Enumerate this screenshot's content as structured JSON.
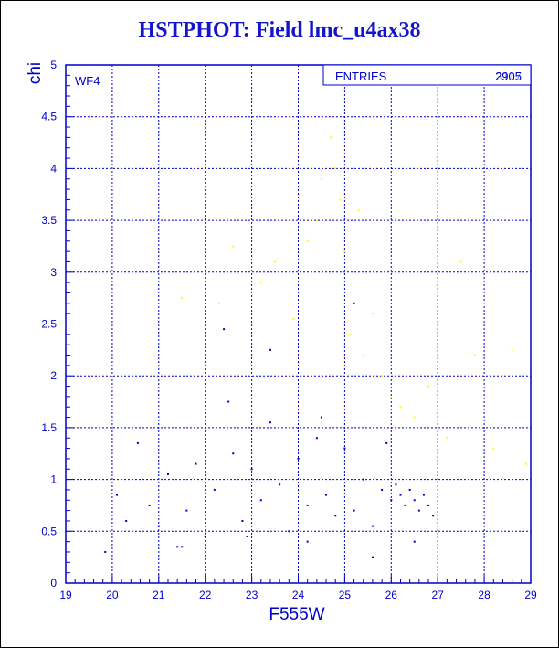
{
  "chart_data": {
    "type": "scatter",
    "title": "HSTPHOT: Field lmc_u4ax38",
    "xlabel": "F555W",
    "ylabel": "chi",
    "xlim": [
      19,
      29
    ],
    "ylim": [
      0,
      5
    ],
    "x_ticks": [
      "19",
      "20",
      "21",
      "22",
      "23",
      "24",
      "25",
      "26",
      "27",
      "28",
      "29"
    ],
    "y_ticks": [
      "0",
      "0.5",
      "1",
      "1.5",
      "2",
      "2.5",
      "3",
      "3.5",
      "4",
      "4.5",
      "5"
    ],
    "grid": true,
    "panel_label": "WF4",
    "stats_label": "ENTRIES",
    "stats_value": "2905",
    "stats_value_overprint": "3117",
    "colors": {
      "frame": "#0000cc",
      "blue_points": "#0000cc",
      "yellow_points": "#ffff00",
      "title": "#1414c8"
    },
    "series": [
      {
        "color": "#0000cc",
        "x": [
          19.85,
          20.1,
          20.3,
          20.55,
          20.8,
          21.0,
          21.2,
          21.4,
          21.6,
          21.8,
          22.0,
          22.2,
          22.4,
          22.6,
          22.8,
          23.0,
          23.2,
          23.4,
          23.6,
          23.8,
          24.0,
          24.2,
          24.4,
          24.6,
          24.8,
          25.0,
          25.2,
          25.4,
          25.6,
          25.8,
          26.0,
          26.1,
          26.2,
          26.3,
          26.4,
          26.5,
          26.6,
          26.7,
          26.8,
          26.9,
          22.5,
          23.4,
          24.5,
          25.2,
          25.9,
          21.5,
          22.9,
          24.2,
          25.6,
          26.5
        ],
        "y": [
          0.3,
          0.85,
          0.6,
          1.35,
          0.75,
          0.55,
          1.05,
          0.35,
          0.7,
          1.15,
          0.45,
          0.9,
          2.45,
          1.25,
          0.6,
          1.1,
          0.8,
          2.25,
          0.95,
          0.5,
          1.2,
          0.75,
          1.4,
          0.85,
          0.65,
          1.3,
          0.7,
          1.0,
          0.55,
          0.9,
          0.8,
          0.95,
          0.85,
          0.75,
          0.9,
          0.8,
          0.7,
          0.85,
          0.75,
          0.65,
          1.75,
          1.55,
          1.6,
          2.7,
          1.35,
          0.35,
          0.45,
          0.4,
          0.25,
          0.4
        ]
      },
      {
        "color": "#ffff00",
        "x": [
          21.5,
          22.3,
          22.6,
          23.2,
          23.5,
          23.9,
          24.2,
          24.4,
          24.5,
          24.7,
          24.8,
          24.9,
          25.0,
          25.1,
          25.3,
          25.4,
          25.6,
          25.8,
          26.0,
          26.2,
          26.5,
          26.8,
          27.0,
          27.2,
          27.5,
          27.8,
          28.0,
          28.2,
          28.6,
          28.9
        ],
        "y": [
          2.75,
          2.7,
          3.25,
          2.9,
          3.1,
          2.55,
          3.3,
          3.5,
          3.9,
          4.3,
          4.0,
          3.7,
          3.2,
          2.4,
          3.6,
          2.2,
          2.6,
          2.0,
          1.8,
          1.7,
          1.6,
          1.9,
          1.5,
          1.4,
          3.1,
          2.2,
          2.7,
          1.3,
          2.25,
          1.15
        ]
      }
    ]
  }
}
